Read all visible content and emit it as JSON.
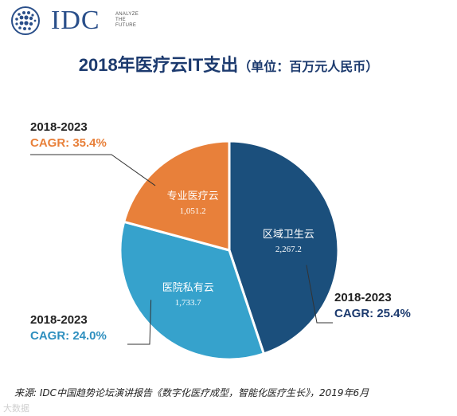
{
  "logo": {
    "text": "IDC",
    "tagline_1": "ANALYZE",
    "tagline_2": "THE",
    "tagline_3": "FUTURE"
  },
  "title": {
    "main": "2018年医疗云IT支出",
    "unit": "（单位：百万元人民币）"
  },
  "chart_data": {
    "type": "pie",
    "title": "2018年医疗云IT支出",
    "unit": "百万元人民币",
    "legend": "none",
    "slices": [
      {
        "label": "区域卫生云",
        "value": 2267.2,
        "value_label": "2,267.2",
        "color": "#1b4f7c",
        "cagr_period": "2018-2023",
        "cagr": "CAGR: 25.4%",
        "cagr_color": "#1c3a6e"
      },
      {
        "label": "医院私有云",
        "value": 1733.7,
        "value_label": "1,733.7",
        "color": "#36a2cc",
        "cagr_period": "2018-2023",
        "cagr": "CAGR: 24.0%",
        "cagr_color": "#2e8fbf"
      },
      {
        "label": "专业医疗云",
        "value": 1051.2,
        "value_label": "1,051.2",
        "color": "#e8803a",
        "cagr_period": "2018-2023",
        "cagr": "CAGR: 35.4%",
        "cagr_color": "#e8803a"
      }
    ]
  },
  "source": "来源: IDC中国趋势论坛演讲报告《数字化医疗成型，智能化医疗生长》，2019年6月",
  "watermark": "大数据"
}
